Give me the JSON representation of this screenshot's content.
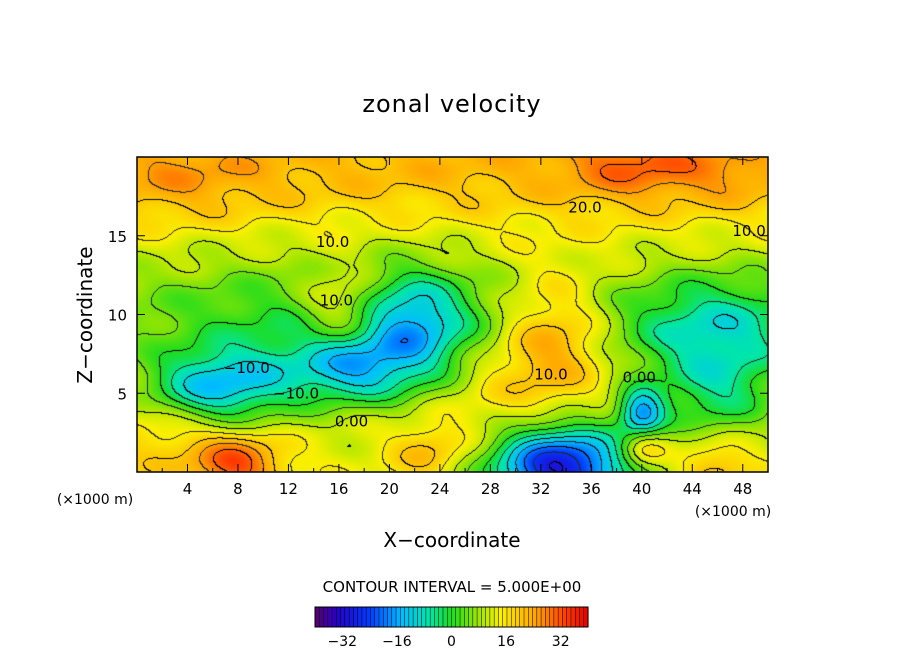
{
  "chart_data": {
    "type": "heatmap",
    "title": "zonal velocity",
    "xlabel": "X−coordinate",
    "ylabel": "Z−coordinate",
    "x_unit_left": "(×1000 m)",
    "x_unit_right": "(×1000 m)",
    "x_ticks": [
      "4",
      "8",
      "12",
      "16",
      "20",
      "24",
      "28",
      "32",
      "36",
      "40",
      "44",
      "48"
    ],
    "y_ticks": [
      "5",
      "10",
      "15"
    ],
    "xlim": [
      0,
      50
    ],
    "ylim": [
      0,
      20
    ],
    "contour_interval_text": "CONTOUR INTERVAL = 5.000E+00",
    "colorbar": {
      "min": -40,
      "max": 40,
      "ticks": [
        "−32",
        "−16",
        "0",
        "16",
        "32"
      ]
    },
    "contour_labels": [
      {
        "text": "20.0",
        "x": 35.5,
        "y": 16.8
      },
      {
        "text": "10.0",
        "x": 15.5,
        "y": 14.6
      },
      {
        "text": "10.0",
        "x": 48.5,
        "y": 15.3
      },
      {
        "text": "10.0",
        "x": 15.8,
        "y": 10.9
      },
      {
        "text": "10.0",
        "x": 32.8,
        "y": 6.2
      },
      {
        "text": "0.00",
        "x": 39.8,
        "y": 6.0
      },
      {
        "text": "−10.0",
        "x": 8.7,
        "y": 6.6
      },
      {
        "text": "−10.0",
        "x": 12.6,
        "y": 5.0
      },
      {
        "text": "0.00",
        "x": 17.0,
        "y": 3.2
      }
    ],
    "field": {
      "background": 13,
      "components": [
        {
          "x": 25,
          "y": 19.5,
          "sx": 30,
          "sy": 2.5,
          "a": 9
        },
        {
          "x": 40,
          "y": 19.5,
          "sx": 4,
          "sy": 1.6,
          "a": 10
        },
        {
          "x": 48,
          "y": 18.8,
          "sx": 3,
          "sy": 1.5,
          "a": 5
        },
        {
          "x": 3,
          "y": 18.5,
          "sx": 5,
          "sy": 2,
          "a": 6
        },
        {
          "x": 25,
          "y": 10,
          "sx": 30,
          "sy": 2.2,
          "a": -6
        },
        {
          "x": 6,
          "y": 5.3,
          "sx": 4,
          "sy": 1.6,
          "a": -22
        },
        {
          "x": 11,
          "y": 6.5,
          "sx": 5,
          "sy": 2,
          "a": -8
        },
        {
          "x": 17,
          "y": 6.5,
          "sx": 3,
          "sy": 1.5,
          "a": -18
        },
        {
          "x": 22,
          "y": 8.7,
          "sx": 3,
          "sy": 2.6,
          "a": -20
        },
        {
          "x": 13,
          "y": 10.5,
          "sx": 12,
          "sy": 3,
          "a": -6
        },
        {
          "x": 16.2,
          "y": 10.5,
          "sx": 2.2,
          "sy": 1.7,
          "a": 12
        },
        {
          "x": 33,
          "y": 8.5,
          "sx": 3,
          "sy": 2.8,
          "a": 15
        },
        {
          "x": 46,
          "y": 8.5,
          "sx": 5,
          "sy": 2.8,
          "a": -18
        },
        {
          "x": 46,
          "y": 4.5,
          "sx": 3,
          "sy": 1.8,
          "a": -10
        },
        {
          "x": 40,
          "y": 3.7,
          "sx": 1.3,
          "sy": 1.1,
          "a": -26
        },
        {
          "x": 40,
          "y": 1.5,
          "sx": 1.3,
          "sy": 0.9,
          "a": 14
        },
        {
          "x": 33.5,
          "y": 0.3,
          "sx": 4,
          "sy": 1.9,
          "a": -44
        },
        {
          "x": 8,
          "y": 0.5,
          "sx": 2.5,
          "sy": 1.3,
          "a": 18
        },
        {
          "x": 46,
          "y": 0.3,
          "sx": 2,
          "sy": 1.2,
          "a": 10
        },
        {
          "x": 23,
          "y": 1.3,
          "sx": 2,
          "sy": 1.2,
          "a": 8
        },
        {
          "x": 2,
          "y": 2,
          "sx": 4,
          "sy": 2.5,
          "a": 6
        },
        {
          "x": 28,
          "y": 3.5,
          "sx": 4,
          "sy": 3,
          "a": 4
        }
      ]
    }
  }
}
